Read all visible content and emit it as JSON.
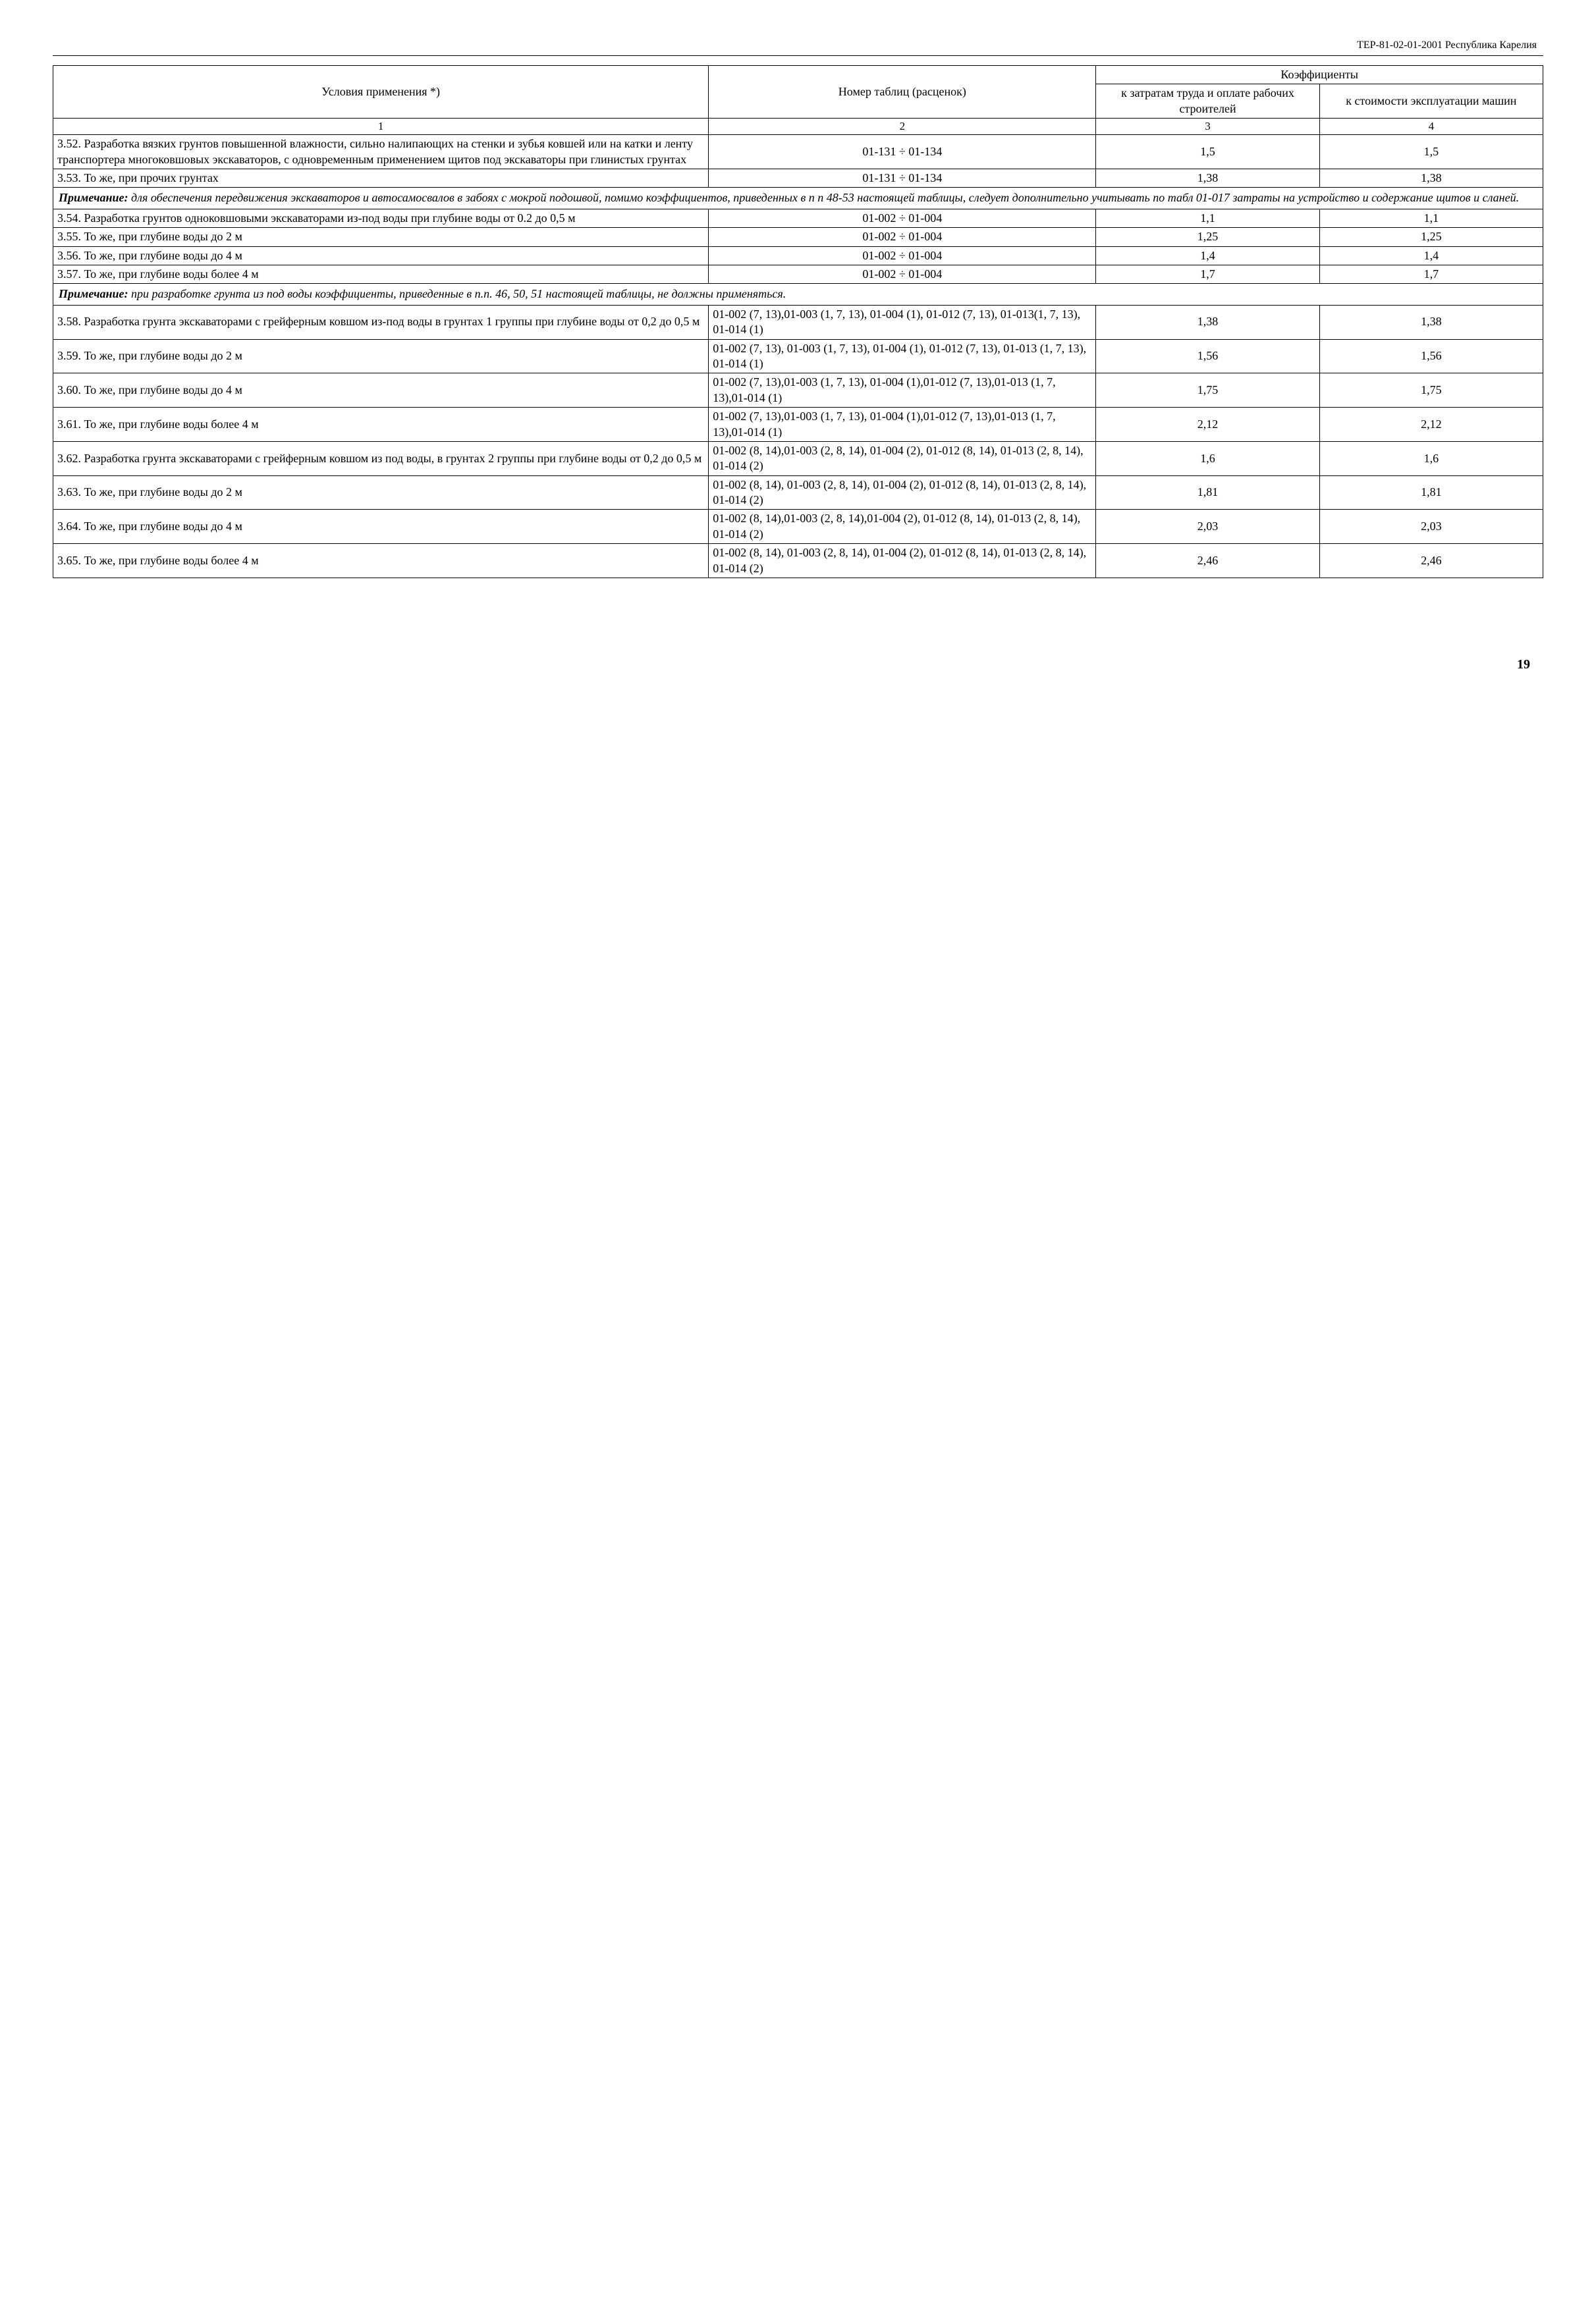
{
  "doc_header": "ТЕР-81-02-01-2001 Республика Карелия",
  "page_number": "19",
  "columns": {
    "c1": "Условия применения *)",
    "c2": "Номер таблиц (расценок)",
    "coeff_header": "Коэффициенты",
    "c3": "к затратам труда и оплате рабочих строителей",
    "c4": "к стоимости эксплуатации машин",
    "n1": "1",
    "n2": "2",
    "n3": "3",
    "n4": "4"
  },
  "rows": [
    {
      "type": "data",
      "c1": "3.52. Разработка вязких грунтов повышенной влажности, сильно налипающих на стенки и зубья ковшей или на катки и ленту транспортера многоковшовых экскаваторов, с одновременным применением щитов под экскаваторы при глинистых грунтах",
      "c2": "01-131 ÷ 01-134",
      "c3": "1,5",
      "c4": "1,5"
    },
    {
      "type": "data",
      "c1": "3.53. То же, при прочих грунтах",
      "c2": "01-131 ÷ 01-134",
      "c3": "1,38",
      "c4": "1,38"
    },
    {
      "type": "note",
      "label": "Примечание:",
      "text": "для обеспечения передвижения экскаваторов и автосамосвалов в забоях с мокрой подошвой, помимо коэффициентов, приведенных в п п  48-53 настоящей таблицы, следует дополнительно учитывать по табл  01-017 затраты на устройство и содержание щитов и сланей."
    },
    {
      "type": "data",
      "c1": "3.54. Разработка грунтов одноковшовыми экскаваторами из-под воды при глубине воды от 0.2 до 0,5 м",
      "c2": "01-002 ÷ 01-004",
      "c3": "1,1",
      "c4": "1,1"
    },
    {
      "type": "data",
      "c1": "3.55. То же, при глубине воды до 2 м",
      "c2": "01-002 ÷ 01-004",
      "c3": "1,25",
      "c4": "1,25"
    },
    {
      "type": "data",
      "c1": "3.56. То же, при глубине воды до 4 м",
      "c2": "01-002 ÷ 01-004",
      "c3": "1,4",
      "c4": "1,4"
    },
    {
      "type": "data",
      "c1": "3.57. То же, при глубине воды более 4 м",
      "c2": "01-002 ÷ 01-004",
      "c3": "1,7",
      "c4": "1,7"
    },
    {
      "type": "note",
      "label": "Примечание:",
      "text": "при разработке грунта из под воды коэффициенты, приведенные в п.п. 46, 50, 51 настоящей таблицы, не должны применяться."
    },
    {
      "type": "data",
      "c1": "3.58. Разработка грунта экскаваторами с грейферным ковшом из-под воды в грунтах 1 группы при глубине воды от 0,2 до 0,5 м",
      "c2": "01-002 (7, 13),01-003 (1, 7, 13), 01-004 (1), 01-012 (7, 13), 01-013(1, 7, 13), 01-014 (1)",
      "c3": "1,38",
      "c4": "1,38"
    },
    {
      "type": "data",
      "c1": "3.59. То же, при глубине воды до 2 м",
      "c2": "01-002 (7, 13), 01-003 (1, 7, 13), 01-004 (1), 01-012 (7, 13), 01-013 (1, 7, 13), 01-014 (1)",
      "c3": "1,56",
      "c4": "1,56"
    },
    {
      "type": "data",
      "c1": "3.60. То же, при глубине воды до 4 м",
      "c2": "01-002 (7, 13),01-003 (1, 7, 13), 01-004 (1),01-012 (7, 13),01-013 (1, 7, 13),01-014 (1)",
      "c3": "1,75",
      "c4": "1,75"
    },
    {
      "type": "data",
      "c1": "3.61. То же, при глубине воды более 4 м",
      "c2": "01-002 (7, 13),01-003 (1, 7, 13), 01-004 (1),01-012 (7, 13),01-013 (1, 7, 13),01-014 (1)",
      "c3": "2,12",
      "c4": "2,12"
    },
    {
      "type": "data",
      "c1": "3.62. Разработка грунта экскаваторами с грейферным ковшом из под воды, в грунтах 2 группы при глубине воды от 0,2 до 0,5 м",
      "c2": "01-002 (8, 14),01-003 (2, 8, 14), 01-004 (2), 01-012 (8, 14), 01-013 (2, 8, 14), 01-014 (2)",
      "c3": "1,6",
      "c4": "1,6"
    },
    {
      "type": "data",
      "c1": "3.63. То же, при глубине воды до 2 м",
      "c2": "01-002 (8, 14), 01-003 (2, 8, 14), 01-004 (2), 01-012 (8, 14), 01-013 (2, 8, 14), 01-014 (2)",
      "c3": "1,81",
      "c4": "1,81"
    },
    {
      "type": "data",
      "c1": "3.64. То же, при глубине воды до 4 м",
      "c2": "01-002 (8, 14),01-003 (2, 8, 14),01-004 (2), 01-012 (8, 14), 01-013 (2, 8, 14), 01-014 (2)",
      "c3": "2,03",
      "c4": "2,03"
    },
    {
      "type": "data",
      "c1": "3.65. То же, при глубине воды более 4 м",
      "c2": "01-002 (8, 14), 01-003 (2, 8, 14), 01-004 (2), 01-012 (8, 14), 01-013 (2, 8, 14), 01-014 (2)",
      "c3": "2,46",
      "c4": "2,46"
    }
  ]
}
